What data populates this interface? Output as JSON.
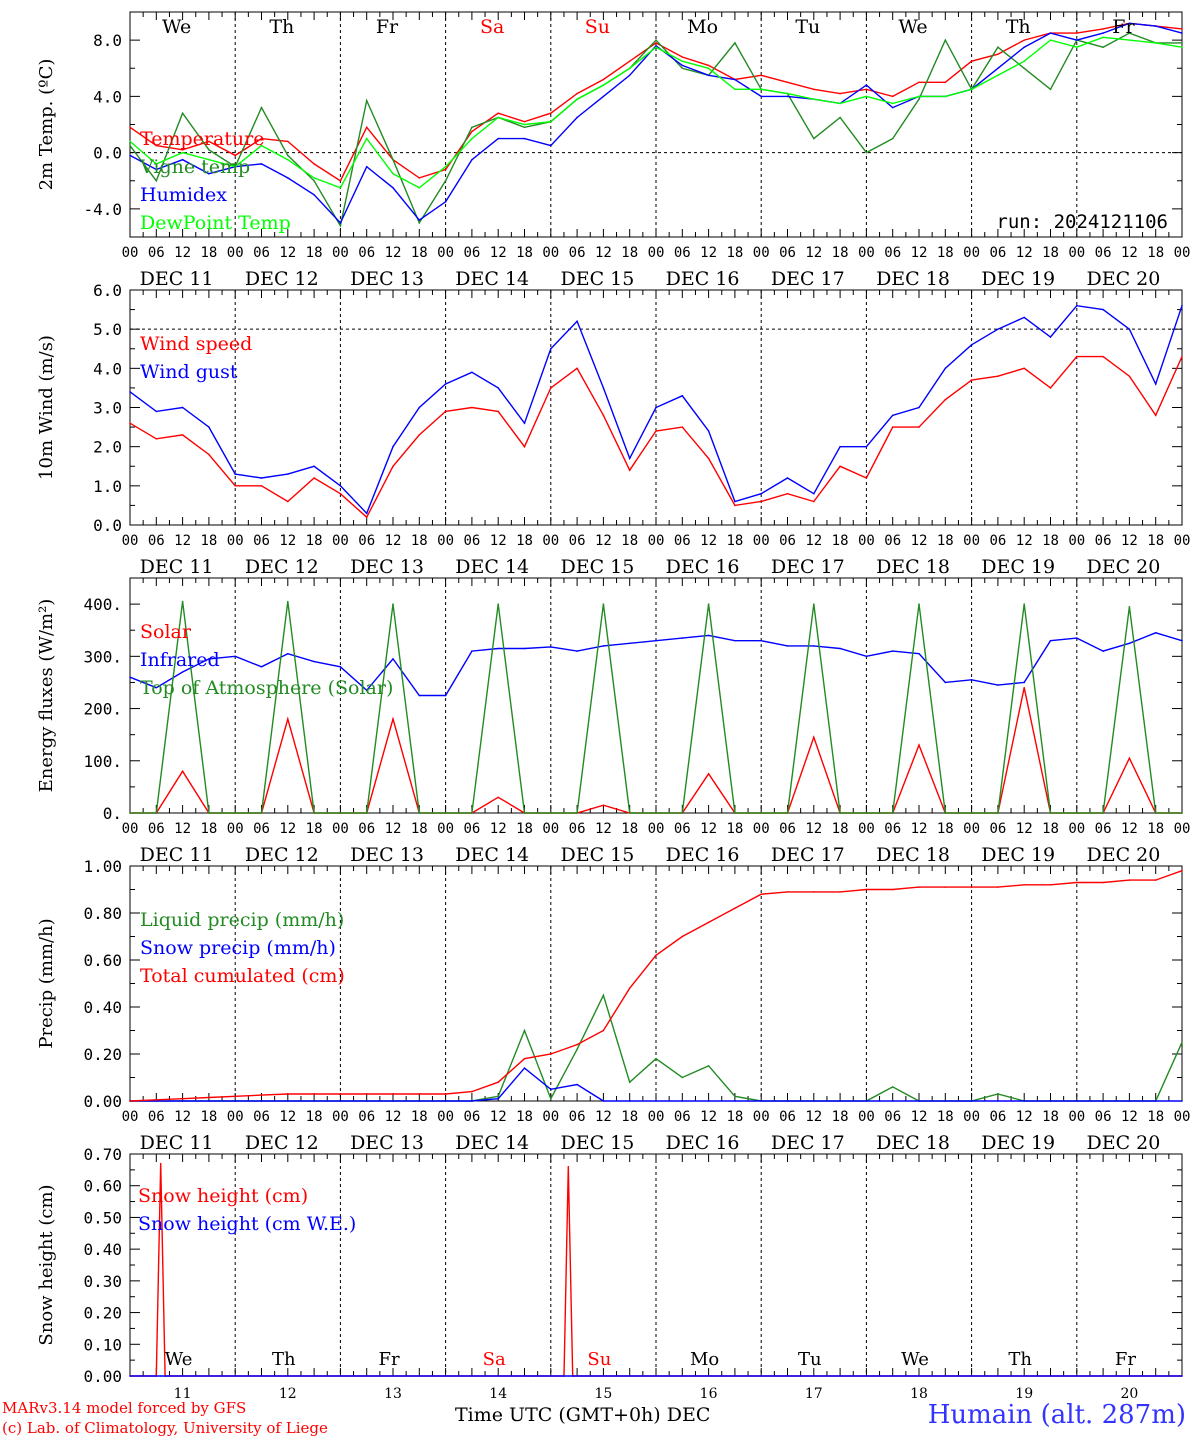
{
  "days": [
    "We",
    "Th",
    "Fr",
    "Sa",
    "Su",
    "Mo",
    "Tu",
    "We",
    "Th",
    "Fr"
  ],
  "weekend_day_indexes": [
    3,
    4
  ],
  "dates": [
    "DEC 11",
    "DEC 12",
    "DEC 13",
    "DEC 14",
    "DEC 15",
    "DEC 16",
    "DEC 17",
    "DEC 18",
    "DEC 19",
    "DEC 20"
  ],
  "day_numbers": [
    "11",
    "12",
    "13",
    "14",
    "15",
    "16",
    "17",
    "18",
    "19",
    "20"
  ],
  "hour_labels": [
    "00",
    "06",
    "12",
    "18"
  ],
  "hour_end_label": "00",
  "run_label": "run: 2024121106",
  "footer": {
    "credit1": "MARv3.14 model forced by GFS",
    "credit2": "(c) Lab. of Climatology, University of Liege",
    "x_title": "Time UTC (GMT+0h)",
    "x_unit": "DEC",
    "location": "Humain (alt. 287m)"
  },
  "colors": {
    "red": "#ff0000",
    "green": "#228b22",
    "blue": "#0000ff",
    "lime": "#00ff00",
    "weekend": "#ff0000"
  },
  "chart_data": [
    {
      "type": "line",
      "ylabel": "2m Temp. (ºC)",
      "ylim": [
        -6,
        10
      ],
      "yticks": [
        -4,
        0,
        4,
        8
      ],
      "ytick_labels": [
        "-4.0",
        "0.0",
        "4.0",
        "8.0"
      ],
      "ref_line": 0,
      "x": [
        0,
        6,
        12,
        18,
        24,
        30,
        36,
        42,
        48,
        54,
        60,
        66,
        72,
        78,
        84,
        90,
        96,
        102,
        108,
        114,
        120,
        126,
        132,
        138,
        144,
        150,
        156,
        162,
        168,
        174,
        180,
        186,
        192,
        198,
        204,
        210,
        216,
        222,
        228,
        234,
        240
      ],
      "series": [
        {
          "name": "Temperature",
          "color": "red",
          "values": [
            1.8,
            0.5,
            0.2,
            0.8,
            -0.2,
            1.0,
            0.8,
            -0.8,
            -2.0,
            1.8,
            -0.5,
            -1.8,
            -1.2,
            1.5,
            2.8,
            2.2,
            2.8,
            4.2,
            5.2,
            6.5,
            7.8,
            6.8,
            6.2,
            5.2,
            5.5,
            5.0,
            4.5,
            4.2,
            4.5,
            4.0,
            5.0,
            5.0,
            6.5,
            7.0,
            8.0,
            8.5,
            8.5,
            8.8,
            9.2,
            9.0,
            8.8
          ]
        },
        {
          "name": "Vigne temp",
          "color": "green",
          "values": [
            0.5,
            -2.0,
            2.8,
            0.2,
            -1.0,
            3.2,
            -0.2,
            -2.0,
            -5.2,
            3.7,
            -0.5,
            -5.0,
            -2.0,
            1.8,
            2.5,
            1.8,
            2.2,
            3.8,
            4.8,
            6.0,
            8.0,
            6.0,
            5.5,
            7.8,
            4.5,
            4.2,
            1.0,
            2.5,
            0.0,
            1.0,
            3.8,
            8.0,
            4.5,
            7.5,
            6.0,
            4.5,
            8.0,
            7.5,
            8.5,
            7.8,
            7.8
          ]
        },
        {
          "name": "Humidex",
          "color": "blue",
          "values": [
            -0.2,
            -1.2,
            -0.5,
            -1.5,
            -1.0,
            -0.8,
            -1.8,
            -3.0,
            -5.0,
            -1.0,
            -2.5,
            -4.8,
            -3.5,
            -0.5,
            1.0,
            1.0,
            0.5,
            2.5,
            4.0,
            5.5,
            7.6,
            6.2,
            5.5,
            5.2,
            4.0,
            4.0,
            3.8,
            3.5,
            4.8,
            3.2,
            4.0,
            4.0,
            4.5,
            6.0,
            7.5,
            8.5,
            8.0,
            8.5,
            9.2,
            9.0,
            8.5
          ]
        },
        {
          "name": "DewPoint Temp",
          "color": "lime",
          "values": [
            0.8,
            -0.8,
            0.0,
            -0.5,
            -1.0,
            0.5,
            -0.5,
            -1.8,
            -2.5,
            1.0,
            -1.5,
            -2.5,
            -1.0,
            1.0,
            2.5,
            2.0,
            2.2,
            3.8,
            4.8,
            6.0,
            7.5,
            6.5,
            6.0,
            4.5,
            4.5,
            4.2,
            3.8,
            3.5,
            4.0,
            3.5,
            4.0,
            4.0,
            4.5,
            5.5,
            6.5,
            8.0,
            7.5,
            8.2,
            8.0,
            7.8,
            7.5
          ]
        }
      ]
    },
    {
      "type": "line",
      "ylabel": "10m Wind (m/s)",
      "ylim": [
        0,
        6
      ],
      "yticks": [
        0,
        1,
        2,
        3,
        4,
        5,
        6
      ],
      "ytick_labels": [
        "0.0",
        "1.0",
        "2.0",
        "3.0",
        "4.0",
        "5.0",
        "6.0"
      ],
      "ref_line": 5,
      "x": [
        0,
        6,
        12,
        18,
        24,
        30,
        36,
        42,
        48,
        54,
        60,
        66,
        72,
        78,
        84,
        90,
        96,
        102,
        108,
        114,
        120,
        126,
        132,
        138,
        144,
        150,
        156,
        162,
        168,
        174,
        180,
        186,
        192,
        198,
        204,
        210,
        216,
        222,
        228,
        234,
        240
      ],
      "series": [
        {
          "name": "Wind speed",
          "color": "red",
          "values": [
            2.6,
            2.2,
            2.3,
            1.8,
            1.0,
            1.0,
            0.6,
            1.2,
            0.8,
            0.2,
            1.5,
            2.3,
            2.9,
            3.0,
            2.9,
            2.0,
            3.5,
            4.0,
            2.8,
            1.4,
            2.4,
            2.5,
            1.7,
            0.5,
            0.6,
            0.8,
            0.6,
            1.5,
            1.2,
            2.5,
            2.5,
            3.2,
            3.7,
            3.8,
            4.0,
            3.5,
            4.3,
            4.3,
            3.8,
            2.8,
            4.3
          ]
        },
        {
          "name": "Wind gust",
          "color": "blue",
          "values": [
            3.4,
            2.9,
            3.0,
            2.5,
            1.3,
            1.2,
            1.3,
            1.5,
            1.0,
            0.3,
            2.0,
            3.0,
            3.6,
            3.9,
            3.5,
            2.6,
            4.5,
            5.2,
            3.5,
            1.7,
            3.0,
            3.3,
            2.4,
            0.6,
            0.8,
            1.2,
            0.8,
            2.0,
            2.0,
            2.8,
            3.0,
            4.0,
            4.6,
            5.0,
            5.3,
            4.8,
            5.6,
            5.5,
            5.0,
            3.6,
            5.6
          ]
        }
      ]
    },
    {
      "type": "line",
      "ylabel": "Energy fluxes (W/m²)",
      "ylim": [
        0,
        450
      ],
      "yticks": [
        0,
        100,
        200,
        300,
        400
      ],
      "ytick_labels": [
        "0.",
        "100.",
        "200.",
        "300.",
        "400."
      ],
      "x": [
        0,
        6,
        12,
        18,
        24,
        30,
        36,
        42,
        48,
        54,
        60,
        66,
        72,
        78,
        84,
        90,
        96,
        102,
        108,
        114,
        120,
        126,
        132,
        138,
        144,
        150,
        156,
        162,
        168,
        174,
        180,
        186,
        192,
        198,
        204,
        210,
        216,
        222,
        228,
        234,
        240
      ],
      "series": [
        {
          "name": "Solar",
          "color": "red",
          "values": [
            0,
            0,
            80,
            0,
            0,
            0,
            180,
            0,
            0,
            0,
            180,
            0,
            0,
            0,
            30,
            0,
            0,
            0,
            15,
            0,
            0,
            0,
            75,
            0,
            0,
            0,
            145,
            0,
            0,
            0,
            130,
            0,
            0,
            0,
            240,
            0,
            0,
            0,
            105,
            0,
            0
          ]
        },
        {
          "name": "Infrared",
          "color": "blue",
          "values": [
            260,
            240,
            270,
            295,
            300,
            280,
            305,
            290,
            280,
            235,
            295,
            225,
            225,
            310,
            315,
            315,
            318,
            310,
            320,
            325,
            330,
            335,
            340,
            330,
            330,
            320,
            320,
            315,
            300,
            310,
            305,
            250,
            255,
            245,
            250,
            330,
            335,
            310,
            325,
            345,
            330
          ]
        },
        {
          "name": "Top of Atmosphere (Solar)",
          "color": "green",
          "values": [
            0,
            0,
            405,
            0,
            0,
            0,
            405,
            0,
            0,
            0,
            400,
            0,
            0,
            0,
            400,
            0,
            0,
            0,
            400,
            0,
            0,
            0,
            400,
            0,
            0,
            0,
            400,
            0,
            0,
            0,
            400,
            0,
            0,
            0,
            400,
            0,
            0,
            0,
            395,
            0,
            0
          ]
        }
      ]
    },
    {
      "type": "line",
      "ylabel": "Precip (mm/h)",
      "ylim": [
        0,
        1
      ],
      "yticks": [
        0,
        0.2,
        0.4,
        0.6,
        0.8,
        1.0
      ],
      "ytick_labels": [
        "0.00",
        "0.20",
        "0.40",
        "0.60",
        "0.80",
        "1.00"
      ],
      "x": [
        0,
        6,
        12,
        18,
        24,
        30,
        36,
        42,
        48,
        54,
        60,
        66,
        72,
        78,
        84,
        90,
        96,
        102,
        108,
        114,
        120,
        126,
        132,
        138,
        144,
        150,
        156,
        162,
        168,
        174,
        180,
        186,
        192,
        198,
        204,
        210,
        216,
        222,
        228,
        234,
        240
      ],
      "series": [
        {
          "name": "Liquid precip (mm/h)",
          "color": "green",
          "values": [
            0,
            0,
            0,
            0,
            0,
            0,
            0,
            0,
            0,
            0,
            0,
            0,
            0,
            0,
            0.02,
            0.3,
            0.01,
            0.22,
            0.45,
            0.08,
            0.18,
            0.1,
            0.15,
            0.02,
            0,
            0,
            0,
            0,
            0,
            0.06,
            0,
            0,
            0,
            0.03,
            0,
            0,
            0,
            0,
            0,
            0,
            0.25
          ]
        },
        {
          "name": "Snow precip (mm/h)",
          "color": "blue",
          "values": [
            0,
            0,
            0,
            0,
            0,
            0,
            0,
            0,
            0,
            0,
            0,
            0,
            0,
            0,
            0.01,
            0.14,
            0.05,
            0.07,
            0,
            0,
            0,
            0,
            0,
            0,
            0,
            0,
            0,
            0,
            0,
            0,
            0,
            0,
            0,
            0,
            0,
            0,
            0,
            0,
            0,
            0,
            0
          ]
        },
        {
          "name": "Total cumulated (cm)",
          "color": "red",
          "values": [
            0,
            0.005,
            0.01,
            0.015,
            0.02,
            0.025,
            0.03,
            0.03,
            0.03,
            0.03,
            0.03,
            0.03,
            0.03,
            0.04,
            0.08,
            0.18,
            0.2,
            0.24,
            0.3,
            0.48,
            0.62,
            0.7,
            0.76,
            0.82,
            0.88,
            0.89,
            0.89,
            0.89,
            0.9,
            0.9,
            0.91,
            0.91,
            0.91,
            0.91,
            0.92,
            0.92,
            0.93,
            0.93,
            0.94,
            0.94,
            0.98
          ]
        }
      ]
    },
    {
      "type": "line",
      "ylabel": "Snow height (cm)",
      "ylim": [
        0,
        0.7
      ],
      "yticks": [
        0,
        0.1,
        0.2,
        0.3,
        0.4,
        0.5,
        0.6,
        0.7
      ],
      "ytick_labels": [
        "0.00",
        "0.10",
        "0.20",
        "0.30",
        "0.40",
        "0.50",
        "0.60",
        "0.70"
      ],
      "x": [
        0,
        6,
        7,
        8,
        92,
        99,
        100,
        101,
        240
      ],
      "series": [
        {
          "name": "Snow height (cm)",
          "color": "red",
          "values": [
            0,
            0,
            0.67,
            0,
            0,
            0,
            0.66,
            0,
            0
          ]
        },
        {
          "name": "Snow height (cm W.E.)",
          "color": "blue",
          "values": [
            0,
            0,
            0,
            0,
            0,
            0,
            0,
            0,
            0
          ]
        }
      ]
    }
  ]
}
